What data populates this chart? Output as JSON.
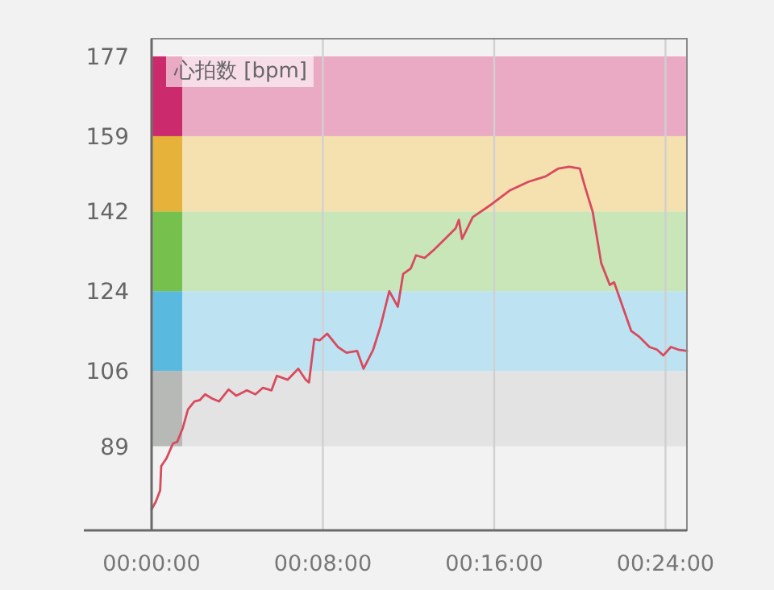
{
  "chart_data": {
    "type": "line",
    "ylabel": "心拍数 [bpm]",
    "x": [
      0,
      0.2,
      0.4,
      0.45,
      0.7,
      1.0,
      1.2,
      1.45,
      1.7,
      2.0,
      2.25,
      2.5,
      2.85,
      3.15,
      3.6,
      3.95,
      4.45,
      4.85,
      5.2,
      5.6,
      5.85,
      6.35,
      6.85,
      7.2,
      7.35,
      7.6,
      7.85,
      8.2,
      8.7,
      9.1,
      9.6,
      9.9,
      10.35,
      10.7,
      11.1,
      11.5,
      11.75,
      12.1,
      12.35,
      12.75,
      13.2,
      13.7,
      14.2,
      14.35,
      14.5,
      15,
      15.9,
      16.75,
      17.6,
      18.4,
      19,
      19.5,
      20,
      20.25,
      20.6,
      21,
      21.4,
      21.6,
      22,
      22.4,
      22.75,
      23.25,
      23.6,
      23.9,
      24.25,
      24.6,
      25
    ],
    "series": [
      {
        "color": "#d84a5e",
        "values": [
          74.7,
          76.5,
          79,
          84.5,
          86.3,
          89.6,
          90,
          93,
          97.3,
          99.1,
          99.4,
          100.7,
          99.7,
          99.1,
          101.8,
          100.4,
          101.6,
          100.7,
          102.2,
          101.6,
          104.9,
          104,
          106.5,
          104,
          103.4,
          113.2,
          112.9,
          114.4,
          111.4,
          110.1,
          110.5,
          106.5,
          110.8,
          116.2,
          124,
          120.5,
          127.9,
          129.1,
          132.1,
          131.5,
          133.4,
          135.8,
          138.2,
          140.1,
          135.8,
          140.7,
          143.7,
          146.8,
          148.7,
          149.9,
          151.7,
          152.1,
          151.7,
          147.4,
          141.9,
          130.3,
          125.4,
          126,
          120.5,
          115,
          113.8,
          111.4,
          110.8,
          109.5,
          111.4,
          110.8,
          110.5
        ]
      }
    ],
    "xlim": [
      0,
      25
    ],
    "ylim": [
      70,
      181
    ],
    "xticks": [
      {
        "value": 0,
        "label": "00:00:00"
      },
      {
        "value": 8,
        "label": "00:08:00"
      },
      {
        "value": 16,
        "label": "00:16:00"
      },
      {
        "value": 24,
        "label": "00:24:00"
      }
    ],
    "yticks": [
      89,
      106,
      124,
      142,
      159,
      177
    ],
    "grid": "x",
    "bands": [
      {
        "axis": "y",
        "from": 89,
        "to": 106,
        "color": "#e2e3e2"
      },
      {
        "axis": "y",
        "from": 106,
        "to": 124,
        "color": "#bde3f2"
      },
      {
        "axis": "y",
        "from": 124,
        "to": 142,
        "color": "#c8e6b8"
      },
      {
        "axis": "y",
        "from": 142,
        "to": 159,
        "color": "#f5e0b0"
      },
      {
        "axis": "y",
        "from": 159,
        "to": 177,
        "color": "#eaaac4"
      }
    ]
  }
}
